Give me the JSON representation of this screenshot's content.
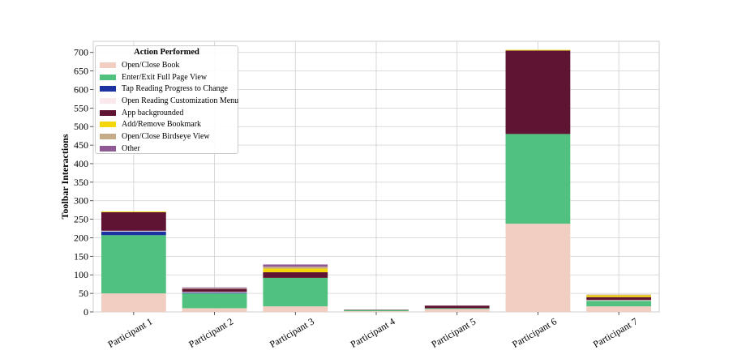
{
  "chart_data": {
    "type": "bar",
    "stacked": true,
    "title": "",
    "xlabel": "",
    "ylabel": "Toolbar Interactions",
    "ylim": [
      0,
      730
    ],
    "yticks": [
      0,
      50,
      100,
      150,
      200,
      250,
      300,
      350,
      400,
      450,
      500,
      550,
      600,
      650,
      700
    ],
    "grid": true,
    "legend_title": "Action Performed",
    "legend_position": "top-left",
    "categories": [
      "Participant 1",
      "Participant 2",
      "Participant 3",
      "Participant 4",
      "Participant 5",
      "Participant 6",
      "Participant 7"
    ],
    "series": [
      {
        "name": "Open/Close Book",
        "color": "#f2cdc2",
        "values": [
          50,
          10,
          15,
          2,
          8,
          238,
          15
        ]
      },
      {
        "name": "Enter/Exit Full Page View",
        "color": "#51c17f",
        "values": [
          157,
          40,
          77,
          3,
          2,
          242,
          15
        ]
      },
      {
        "name": "Tap Reading Progress to Change",
        "color": "#1c32a1",
        "values": [
          10,
          2,
          0,
          0,
          0,
          0,
          0
        ]
      },
      {
        "name": "Open Reading Customization Menu",
        "color": "#fbe8ec",
        "values": [
          2,
          2,
          0,
          0,
          0,
          0,
          2
        ]
      },
      {
        "name": "App backgrounded",
        "color": "#5e1432",
        "values": [
          50,
          8,
          15,
          1,
          7,
          225,
          8
        ]
      },
      {
        "name": "Add/Remove Bookmark",
        "color": "#f5d60a",
        "values": [
          2,
          0,
          10,
          0,
          0,
          2,
          5
        ]
      },
      {
        "name": "Open/Close Birdseye View",
        "color": "#c6ab89",
        "values": [
          0,
          2,
          5,
          0,
          0,
          0,
          2
        ]
      },
      {
        "name": "Other",
        "color": "#8f5a94",
        "values": [
          0,
          2,
          6,
          0,
          0,
          0,
          0
        ]
      }
    ]
  }
}
